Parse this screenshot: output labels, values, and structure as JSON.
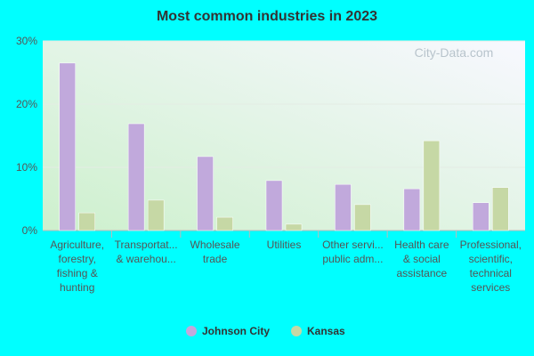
{
  "chart_data": {
    "type": "bar",
    "title": "Most common industries in 2023",
    "watermark": "City-Data.com",
    "categories": [
      [
        "Agriculture,",
        "forestry,",
        "fishing &",
        "hunting"
      ],
      [
        "Transportat...",
        "& warehou..."
      ],
      [
        "Wholesale",
        "trade"
      ],
      [
        "Utilities"
      ],
      [
        "Other servi...",
        "public adm..."
      ],
      [
        "Health care",
        "& social",
        "assistance"
      ],
      [
        "Professional,",
        "scientific,",
        "technical",
        "services"
      ]
    ],
    "series": [
      {
        "name": "Johnson City",
        "color": "#c1a9dc",
        "values": [
          26.5,
          16.9,
          11.7,
          7.9,
          7.3,
          6.6,
          4.4
        ]
      },
      {
        "name": "Kansas",
        "color": "#c6d8a5",
        "values": [
          2.8,
          4.8,
          2.1,
          1.0,
          4.1,
          14.2,
          6.8
        ]
      }
    ],
    "ylim": [
      0,
      30
    ],
    "yticks": [
      {
        "value": 0,
        "label": "0%"
      },
      {
        "value": 10,
        "label": "10%"
      },
      {
        "value": 20,
        "label": "20%"
      },
      {
        "value": 30,
        "label": "30%"
      }
    ],
    "grid": true
  }
}
